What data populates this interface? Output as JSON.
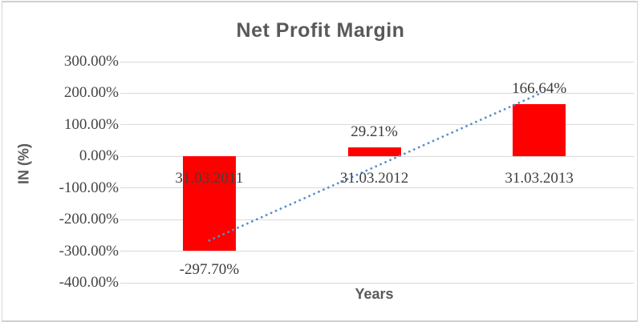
{
  "chart_data": {
    "type": "bar",
    "title": "Net Profit Margin",
    "categories": [
      "31.03.2011",
      "31.03.2012",
      "31.03.2013"
    ],
    "series": [
      {
        "name": "Net Profit Margin",
        "values": [
          -297.7,
          29.21,
          166.64
        ]
      }
    ],
    "data_labels": [
      "-297.70%",
      "29.21%",
      "166.64%"
    ],
    "xlabel": "Years",
    "ylabel": "IN (%)",
    "ylim": [
      -400,
      300
    ],
    "ytick_step": 100,
    "ytick_labels": [
      "300.00%",
      "200.00%",
      "100.00%",
      "0.00%",
      "-100.00%",
      "-200.00%",
      "-300.00%",
      "-400.00%"
    ],
    "grid": true,
    "legend": "none",
    "bar_color": "#FF0000",
    "label_color": "#404040",
    "title_color": "#595959",
    "gridline_color": "#D9D9D9",
    "trendline": {
      "type": "linear",
      "style": "dotted",
      "color": "#5A8FC8",
      "endpoint_values": [
        -266.1,
        198.2
      ]
    }
  }
}
